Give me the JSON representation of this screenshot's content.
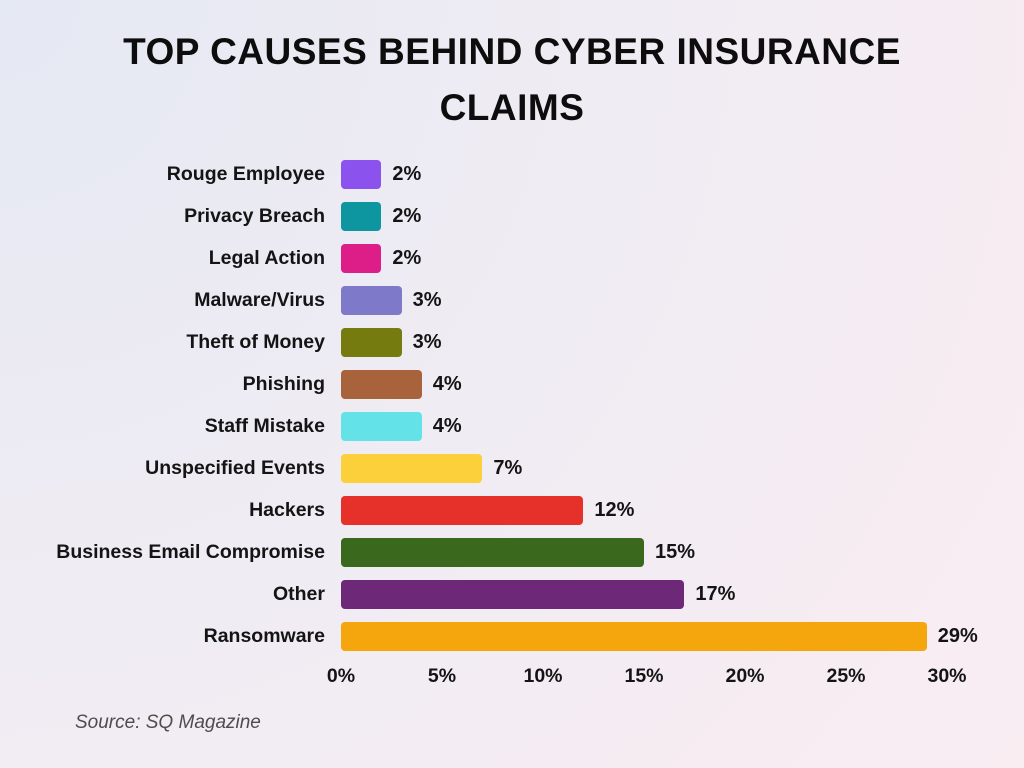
{
  "chart": {
    "title_lines": [
      "TOP CAUSES BEHIND CYBER INSURANCE",
      "CLAIMS"
    ],
    "source": "Source: SQ Magazine"
  },
  "chart_data": {
    "type": "bar",
    "orientation": "horizontal",
    "title": "TOP CAUSES BEHIND CYBER INSURANCE CLAIMS",
    "categories": [
      "Rouge Employee",
      "Privacy Breach",
      "Legal Action",
      "Malware/Virus",
      "Theft of Money",
      "Phishing",
      "Staff Mistake",
      "Unspecified Events",
      "Hackers",
      "Business Email Compromise",
      "Other",
      "Ransomware"
    ],
    "values": [
      2,
      2,
      2,
      3,
      3,
      4,
      4,
      7,
      12,
      15,
      17,
      29
    ],
    "value_labels": [
      "2%",
      "2%",
      "2%",
      "3%",
      "3%",
      "4%",
      "4%",
      "7%",
      "12%",
      "15%",
      "17%",
      "29%"
    ],
    "bar_colors": [
      "#8b52ee",
      "#0e96a0",
      "#dd1e88",
      "#7e79c8",
      "#767b10",
      "#a8633d",
      "#63e3e8",
      "#fbd03b",
      "#e6312a",
      "#3a681c",
      "#6e2878",
      "#f6a60d"
    ],
    "x_ticks": [
      "0%",
      "5%",
      "10%",
      "15%",
      "20%",
      "25%",
      "30%"
    ],
    "x_tick_values": [
      0,
      5,
      10,
      15,
      20,
      25,
      30
    ],
    "xlim": [
      0,
      30
    ],
    "xlabel": "",
    "ylabel": "",
    "grid": false,
    "legend": false
  },
  "colors": {
    "background_start": "#e5e9f3",
    "background_end": "#f9edf2",
    "text": "#141414",
    "source_text": "#4d4d4d"
  }
}
